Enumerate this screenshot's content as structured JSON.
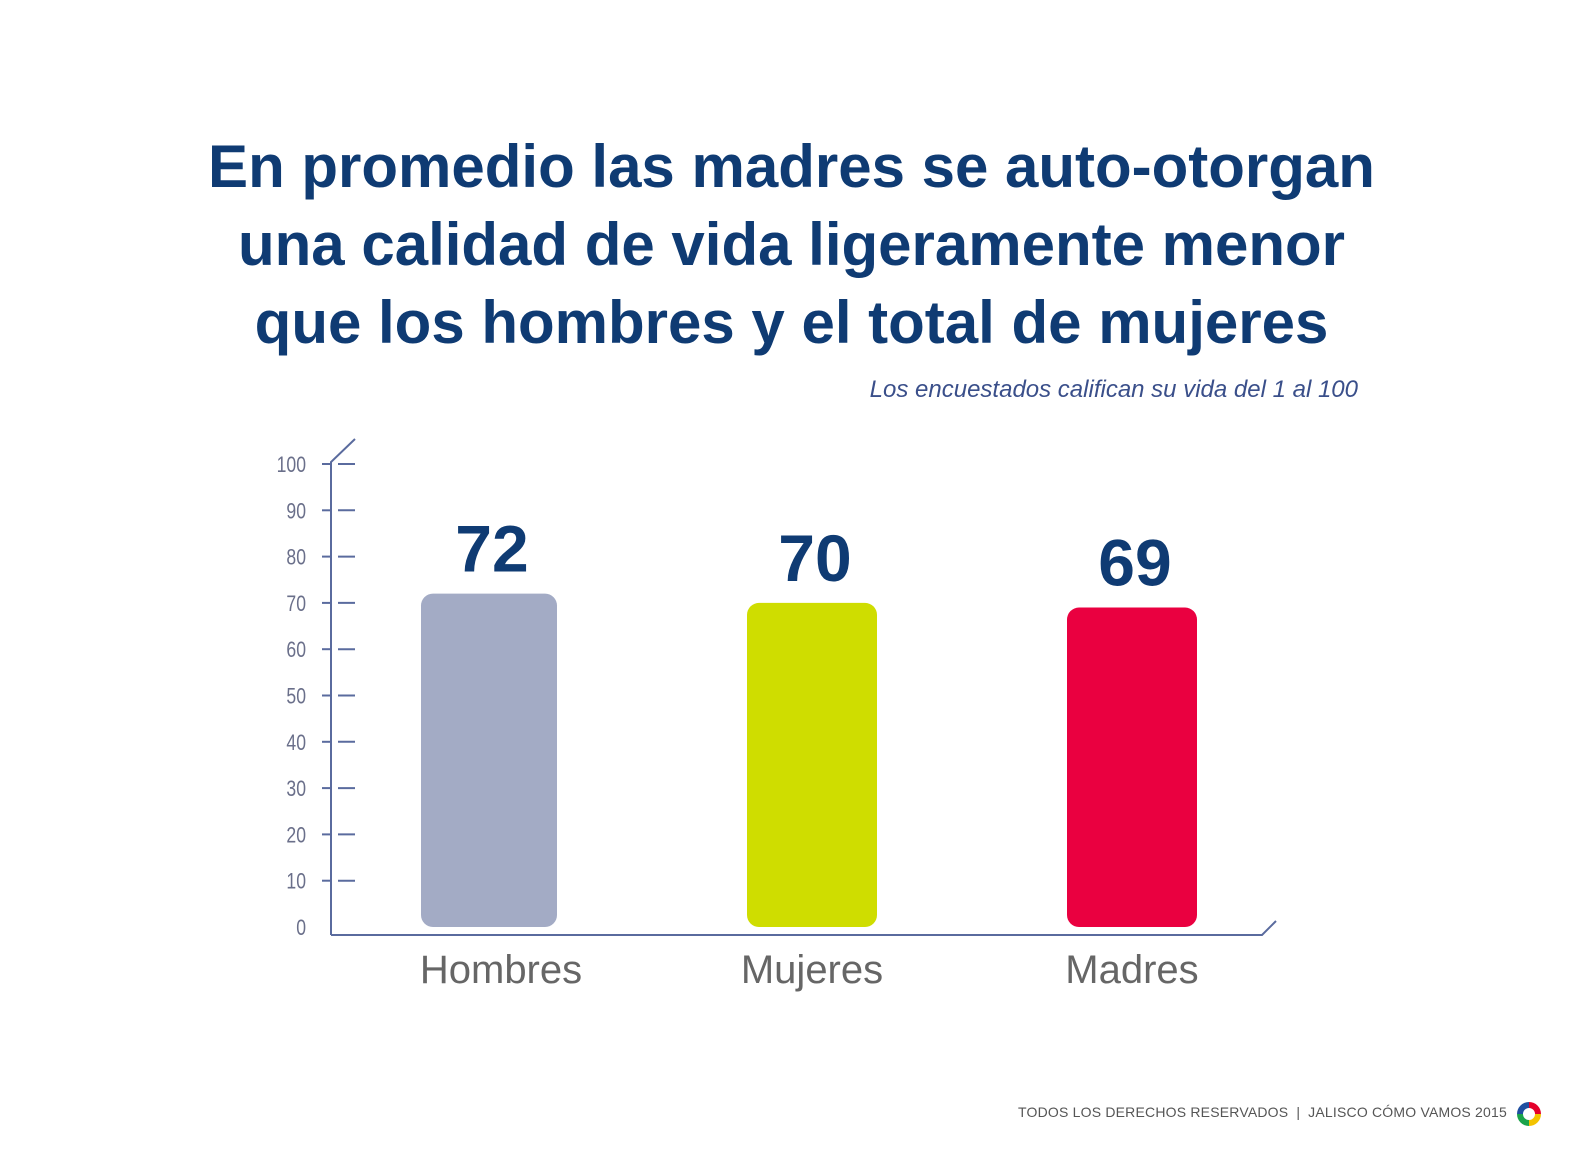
{
  "header": {
    "title_lines": [
      "En promedio las madres se auto-otorgan",
      "una calidad de vida ligeramente menor",
      "que los hombres y el total de mujeres"
    ],
    "subtitle": "Los encuestados califican su vida del 1 al 100"
  },
  "chart_data": {
    "type": "bar",
    "categories": [
      "Hombres",
      "Mujeres",
      "Madres"
    ],
    "values": [
      72,
      70,
      69
    ],
    "value_labels": [
      "72",
      "70",
      "69"
    ],
    "bar_colors": [
      "#a3abc5",
      "#cfdd00",
      "#ea0040"
    ],
    "title": "",
    "xlabel": "",
    "ylabel": "",
    "ylim": [
      0,
      100
    ],
    "yticks": [
      "0",
      "10",
      "20",
      "30",
      "40",
      "50",
      "60",
      "70",
      "80",
      "90",
      "100"
    ],
    "grid": false,
    "legend": "none"
  },
  "footer": {
    "rights": "TODOS LOS DERECHOS RESERVADOS",
    "separator": "|",
    "org": "JALISCO CÓMO VAMOS 2015",
    "logo_icon": "ring-logo-icon"
  },
  "colors": {
    "title": "#0f3b73",
    "axis": "#5a6b9e",
    "category_label": "#666666",
    "value_label": "#0f3b73"
  }
}
